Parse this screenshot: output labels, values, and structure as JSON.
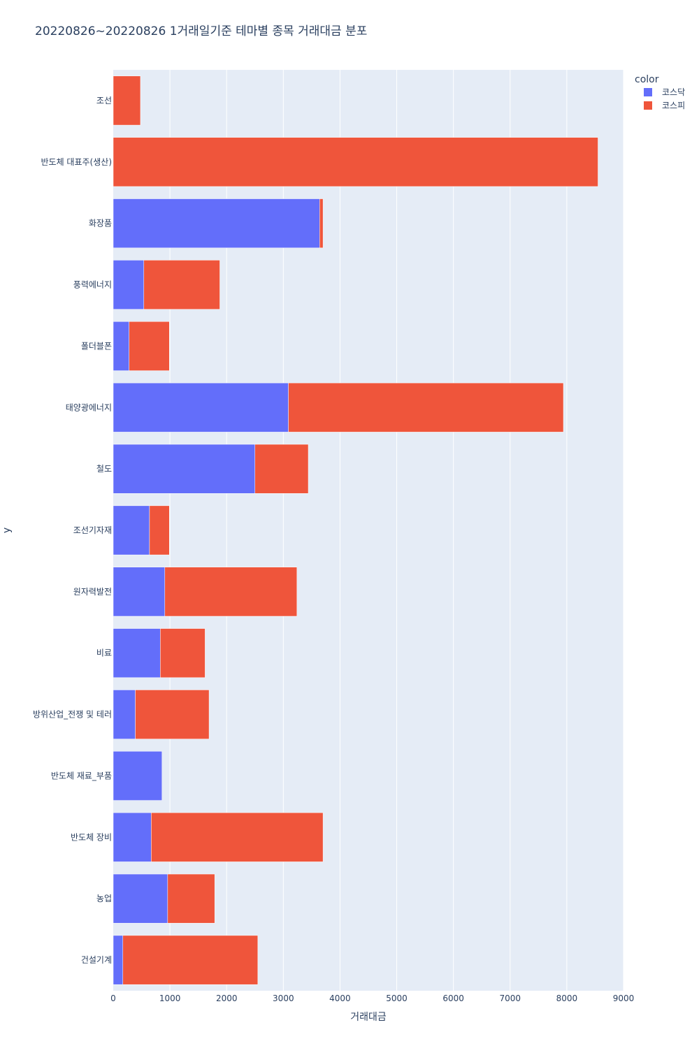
{
  "chart_data": {
    "type": "bar",
    "orientation": "horizontal",
    "barmode": "stack",
    "title": "20220826~20220826 1거래일기준 테마별 종목 거래대금 분포",
    "xlabel": "거래대금",
    "ylabel": "y",
    "xlim": [
      0,
      9000
    ],
    "xticks": [
      0,
      1000,
      2000,
      3000,
      4000,
      5000,
      6000,
      7000,
      8000,
      9000
    ],
    "categories": [
      "조선",
      "반도체 대표주(생산)",
      "화장품",
      "풍력에너지",
      "폴더블폰",
      "태양광에너지",
      "철도",
      "조선기자재",
      "원자력발전",
      "비료",
      "방위산업_전쟁 및 테러",
      "반도체 재료_부품",
      "반도체 장비",
      "농업",
      "건설기계"
    ],
    "series": [
      {
        "name": "코스닥",
        "color": "#636efa",
        "values": [
          0,
          0,
          3640,
          540,
          280,
          3090,
          2500,
          640,
          910,
          830,
          390,
          860,
          670,
          960,
          170
        ]
      },
      {
        "name": "코스피",
        "color": "#ef553b",
        "values": [
          480,
          8550,
          60,
          1340,
          710,
          4850,
          940,
          350,
          2330,
          790,
          1300,
          0,
          3030,
          830,
          2380
        ]
      }
    ],
    "legend": {
      "title": "color",
      "position": "top-right"
    },
    "grid": true
  }
}
